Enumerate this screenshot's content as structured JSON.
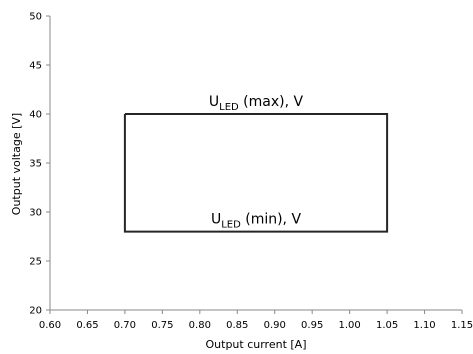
{
  "chart_data": {
    "type": "line",
    "xlabel": "Output current [A]",
    "ylabel": "Output voltage [V]",
    "xlim": [
      0.6,
      1.15
    ],
    "ylim": [
      20,
      50
    ],
    "x_ticks": [
      "0.60",
      "0.65",
      "0.70",
      "0.75",
      "0.80",
      "0.85",
      "0.90",
      "0.95",
      "1.00",
      "1.05",
      "1.10",
      "1.15"
    ],
    "y_ticks": [
      "20",
      "25",
      "30",
      "35",
      "40",
      "45",
      "50"
    ],
    "grid": false,
    "legend": "none",
    "series": [
      {
        "x": [
          0.7,
          1.05,
          1.05,
          0.7,
          0.7
        ],
        "y": [
          40,
          40,
          28,
          28,
          40
        ],
        "color": "#262626"
      }
    ],
    "annotations": [
      {
        "main": "U",
        "sub": "LED",
        "rest": " (max), V",
        "x": 0.875,
        "y": 40
      },
      {
        "main": "U",
        "sub": "LED",
        "rest": " (min), V",
        "x": 0.875,
        "y": 28
      }
    ]
  }
}
